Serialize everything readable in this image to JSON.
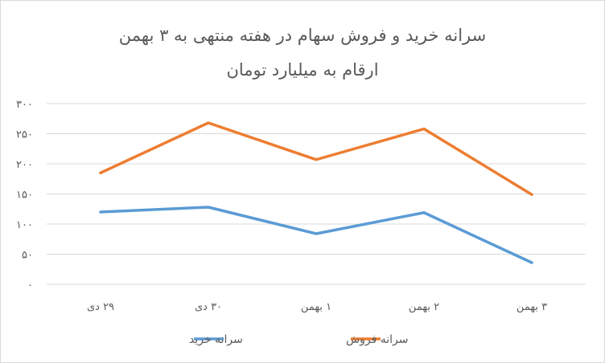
{
  "chart_data": {
    "type": "line",
    "title": "سرانه خرید و فروش سهام در هفته منتهی به ۳ بهمن",
    "subtitle": "ارقام به میلیارد تومان",
    "categories": [
      "۲۹ دی",
      "۳۰ دی",
      "۱ بهمن",
      "۲ بهمن",
      "۳ بهمن"
    ],
    "series": [
      {
        "name": "سرانه خرید",
        "values": [
          120,
          128,
          84,
          119,
          36
        ],
        "color": "#5b9bd5"
      },
      {
        "name": "سرانه فروش",
        "values": [
          185,
          268,
          207,
          258,
          149
        ],
        "color": "#ed7d31"
      }
    ],
    "y_ticks": [
      "۰",
      "۵۰",
      "۱۰۰",
      "۱۵۰",
      "۲۰۰",
      "۲۵۰",
      "۳۰۰"
    ],
    "ylim": [
      0,
      300
    ],
    "grid": true,
    "legend_position": "bottom",
    "legend_order": [
      "سرانه فروش",
      "سرانه خرید"
    ]
  }
}
